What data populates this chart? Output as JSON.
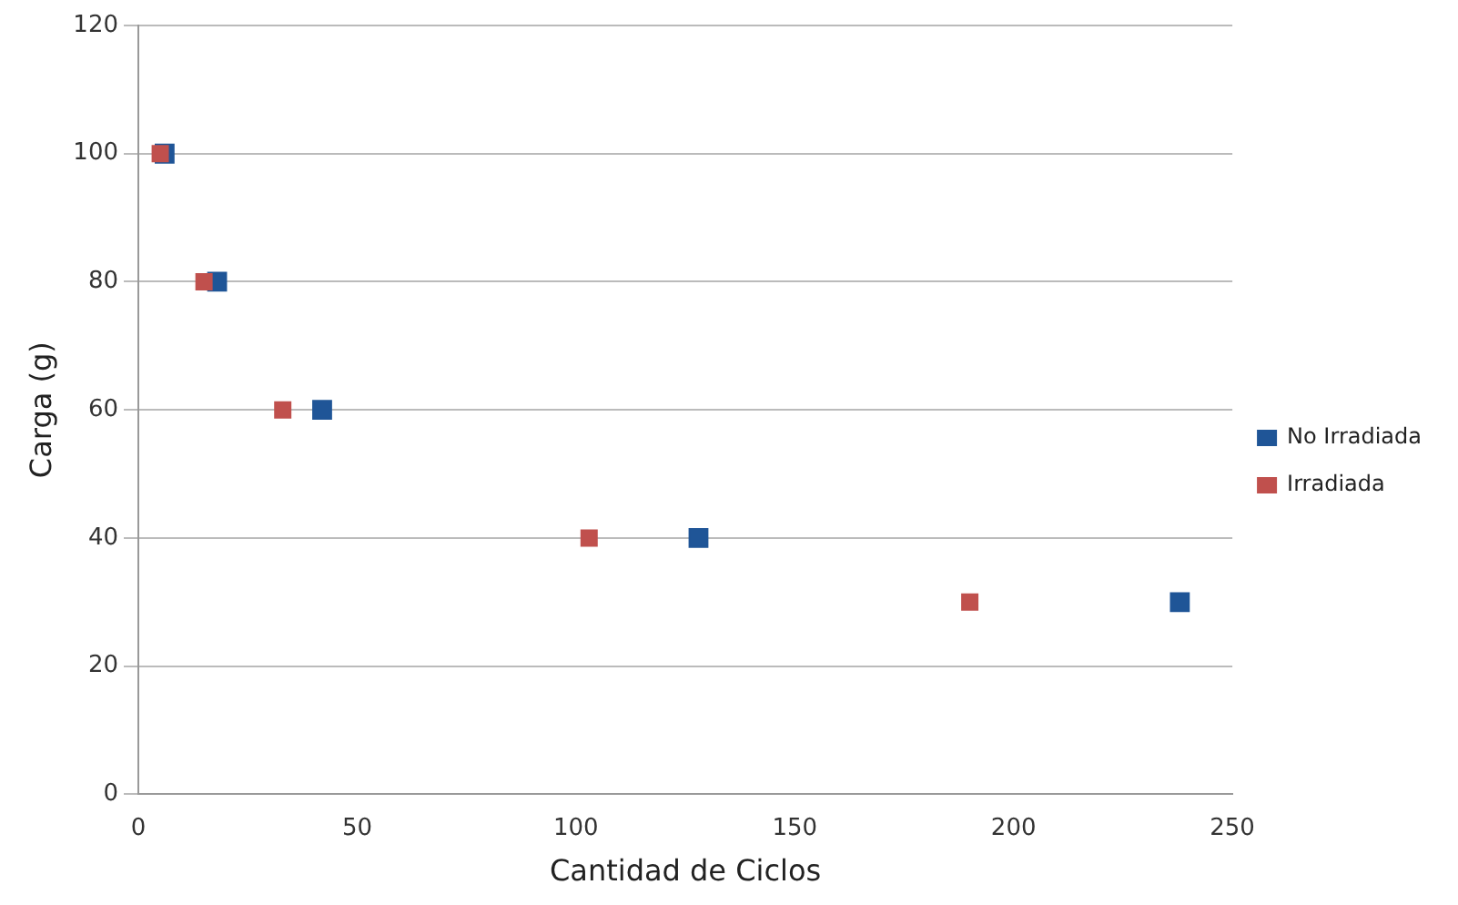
{
  "chart_data": {
    "type": "scatter",
    "xlabel": "Cantidad de Ciclos",
    "ylabel": "Carga (g)",
    "series": [
      {
        "name": "No Irradiada",
        "color": "#1f5597",
        "x": [
          6,
          18,
          42,
          128,
          238
        ],
        "values": [
          100,
          80,
          60,
          40,
          30
        ]
      },
      {
        "name": "Irradiada",
        "color": "#c0504d",
        "x": [
          5,
          15,
          33,
          103,
          190
        ],
        "values": [
          100,
          80,
          60,
          40,
          30
        ]
      }
    ],
    "xlim": [
      0,
      250
    ],
    "xticks": [
      0,
      50,
      100,
      150,
      200,
      250
    ],
    "ylim": [
      0,
      120
    ],
    "yticks": [
      0,
      20,
      40,
      60,
      80,
      100,
      120
    ],
    "grid": "y",
    "legend": "right",
    "marker": "square"
  }
}
